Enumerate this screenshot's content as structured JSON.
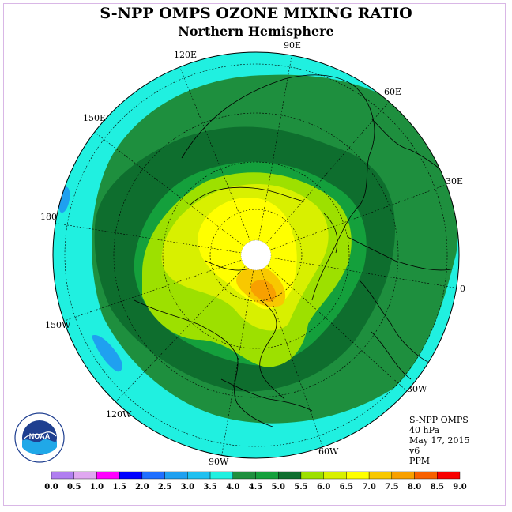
{
  "title": "S-NPP OMPS OZONE MIXING RATIO",
  "subtitle": "Northern Hemisphere",
  "longitude_labels": [
    "90E",
    "60E",
    "30E",
    "0",
    "30W",
    "60W",
    "90W",
    "120W",
    "150W",
    "180",
    "150E",
    "120E"
  ],
  "info": {
    "instrument": "S-NPP OMPS",
    "pressure": "40 hPa",
    "date": "May 17, 2015",
    "version": "v6",
    "units": "PPM"
  },
  "logo": {
    "text": "NOAA",
    "ring_text": "NATIONAL OCEANIC AND ATMOSPHERIC ADMINISTRATION · U.S. DEPARTMENT OF COMMERCE"
  },
  "colorbar": {
    "tick_labels": [
      "0.0",
      "0.5",
      "1.0",
      "1.5",
      "2.0",
      "2.5",
      "3.0",
      "3.5",
      "4.0",
      "4.5",
      "5.0",
      "5.5",
      "6.0",
      "6.5",
      "7.0",
      "7.5",
      "8.0",
      "8.5",
      "9.0"
    ],
    "colors": [
      "#b07ef0",
      "#e0a8f0",
      "#ff00ff",
      "#0000ff",
      "#1f6fff",
      "#1fa0f0",
      "#20c0f0",
      "#20f0e0",
      "#1e8f3e",
      "#14a03c",
      "#0e6e2e",
      "#9de000",
      "#d8f000",
      "#ffff00",
      "#f8c800",
      "#f8a000",
      "#f86000",
      "#f80000",
      "#8c5020"
    ]
  },
  "color_legend": {
    "ocean_low": "#20f0e0",
    "mid": "#1e8f3e",
    "dark": "#0e6e2e",
    "light_green": "#9de000",
    "yellow_green": "#d8f000",
    "yellow": "#ffff00",
    "orange": "#f8a000"
  }
}
